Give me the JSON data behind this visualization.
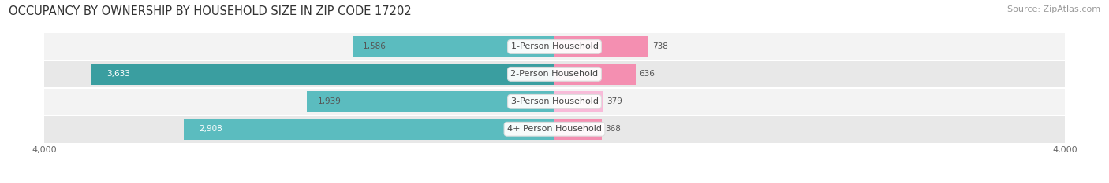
{
  "title": "OCCUPANCY BY OWNERSHIP BY HOUSEHOLD SIZE IN ZIP CODE 17202",
  "source": "Source: ZipAtlas.com",
  "categories": [
    "1-Person Household",
    "2-Person Household",
    "3-Person Household",
    "4+ Person Household"
  ],
  "owner_values": [
    1586,
    3633,
    1939,
    2908
  ],
  "renter_values": [
    738,
    636,
    379,
    368
  ],
  "owner_color": "#5BBCBF",
  "owner_color_dark": "#3A9EA0",
  "renter_color": "#F48FB1",
  "renter_color_light": "#F8BBD9",
  "background_color": "#FFFFFF",
  "row_colors": [
    "#E8E8E8",
    "#F3F3F3"
  ],
  "axis_max": 4000,
  "title_fontsize": 10.5,
  "source_fontsize": 8,
  "bar_height": 0.78,
  "figsize": [
    14.06,
    2.33
  ],
  "dpi": 100
}
